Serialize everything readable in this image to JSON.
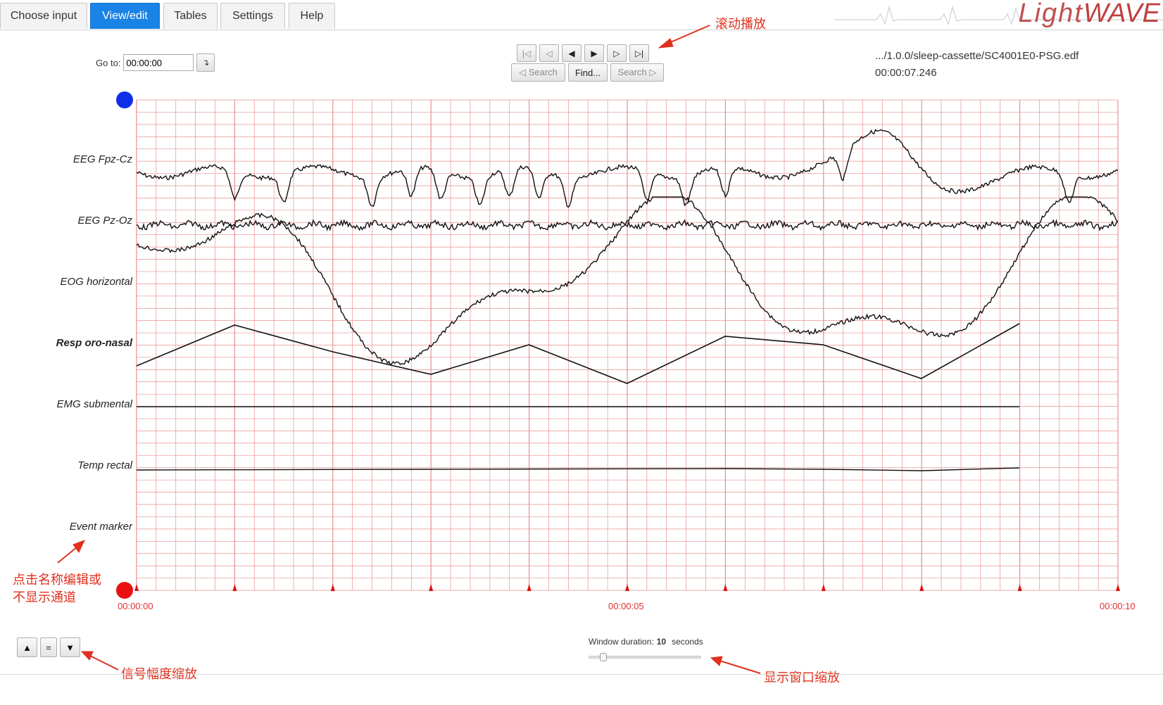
{
  "tabs": [
    "Choose input",
    "View/edit",
    "Tables",
    "Settings",
    "Help"
  ],
  "active_tab": "View/edit",
  "logo": {
    "light": "Light",
    "wave": "WAVE"
  },
  "goto": {
    "label": "Go to:",
    "value": "00:00:00",
    "button": "↴"
  },
  "nav": {
    "first": "|◁",
    "prev_page": "◁",
    "prev": "◀",
    "next": "▶",
    "next_page": "▷",
    "last": "▷|",
    "search_prev": "◁ Search",
    "find": "Find...",
    "search_next": "Search ▷"
  },
  "file": {
    "path": ".../1.0.0/sleep-cassette/SC4001E0-PSG.edf",
    "time": "00:00:07.246"
  },
  "channels": [
    "EEG Fpz-Cz",
    "EEG Pz-Oz",
    "EOG horizontal",
    "Resp oro-nasal",
    "EMG submental",
    "Temp rectal",
    "Event marker"
  ],
  "time_labels": [
    "00:00:00",
    "00:00:05",
    "00:00:10"
  ],
  "amplitude": {
    "up": "▲",
    "reset": "=",
    "down": "▼"
  },
  "window": {
    "label": "Window duration:",
    "value": "10",
    "unit": "seconds",
    "slider_fraction": 0.1
  },
  "annotations": {
    "scroll": "滚动播放",
    "channel_edit_line1": "点击名称编辑或",
    "channel_edit_line2": "不显示通道",
    "amplitude_zoom": "信号幅度缩放",
    "window_zoom": "显示窗口缩放"
  },
  "colors": {
    "grid": "#e89090",
    "active_tab": "#1a83e6",
    "annotation": "#e0301e",
    "marker_blue": "#1030e8",
    "marker_red": "#e81010"
  }
}
